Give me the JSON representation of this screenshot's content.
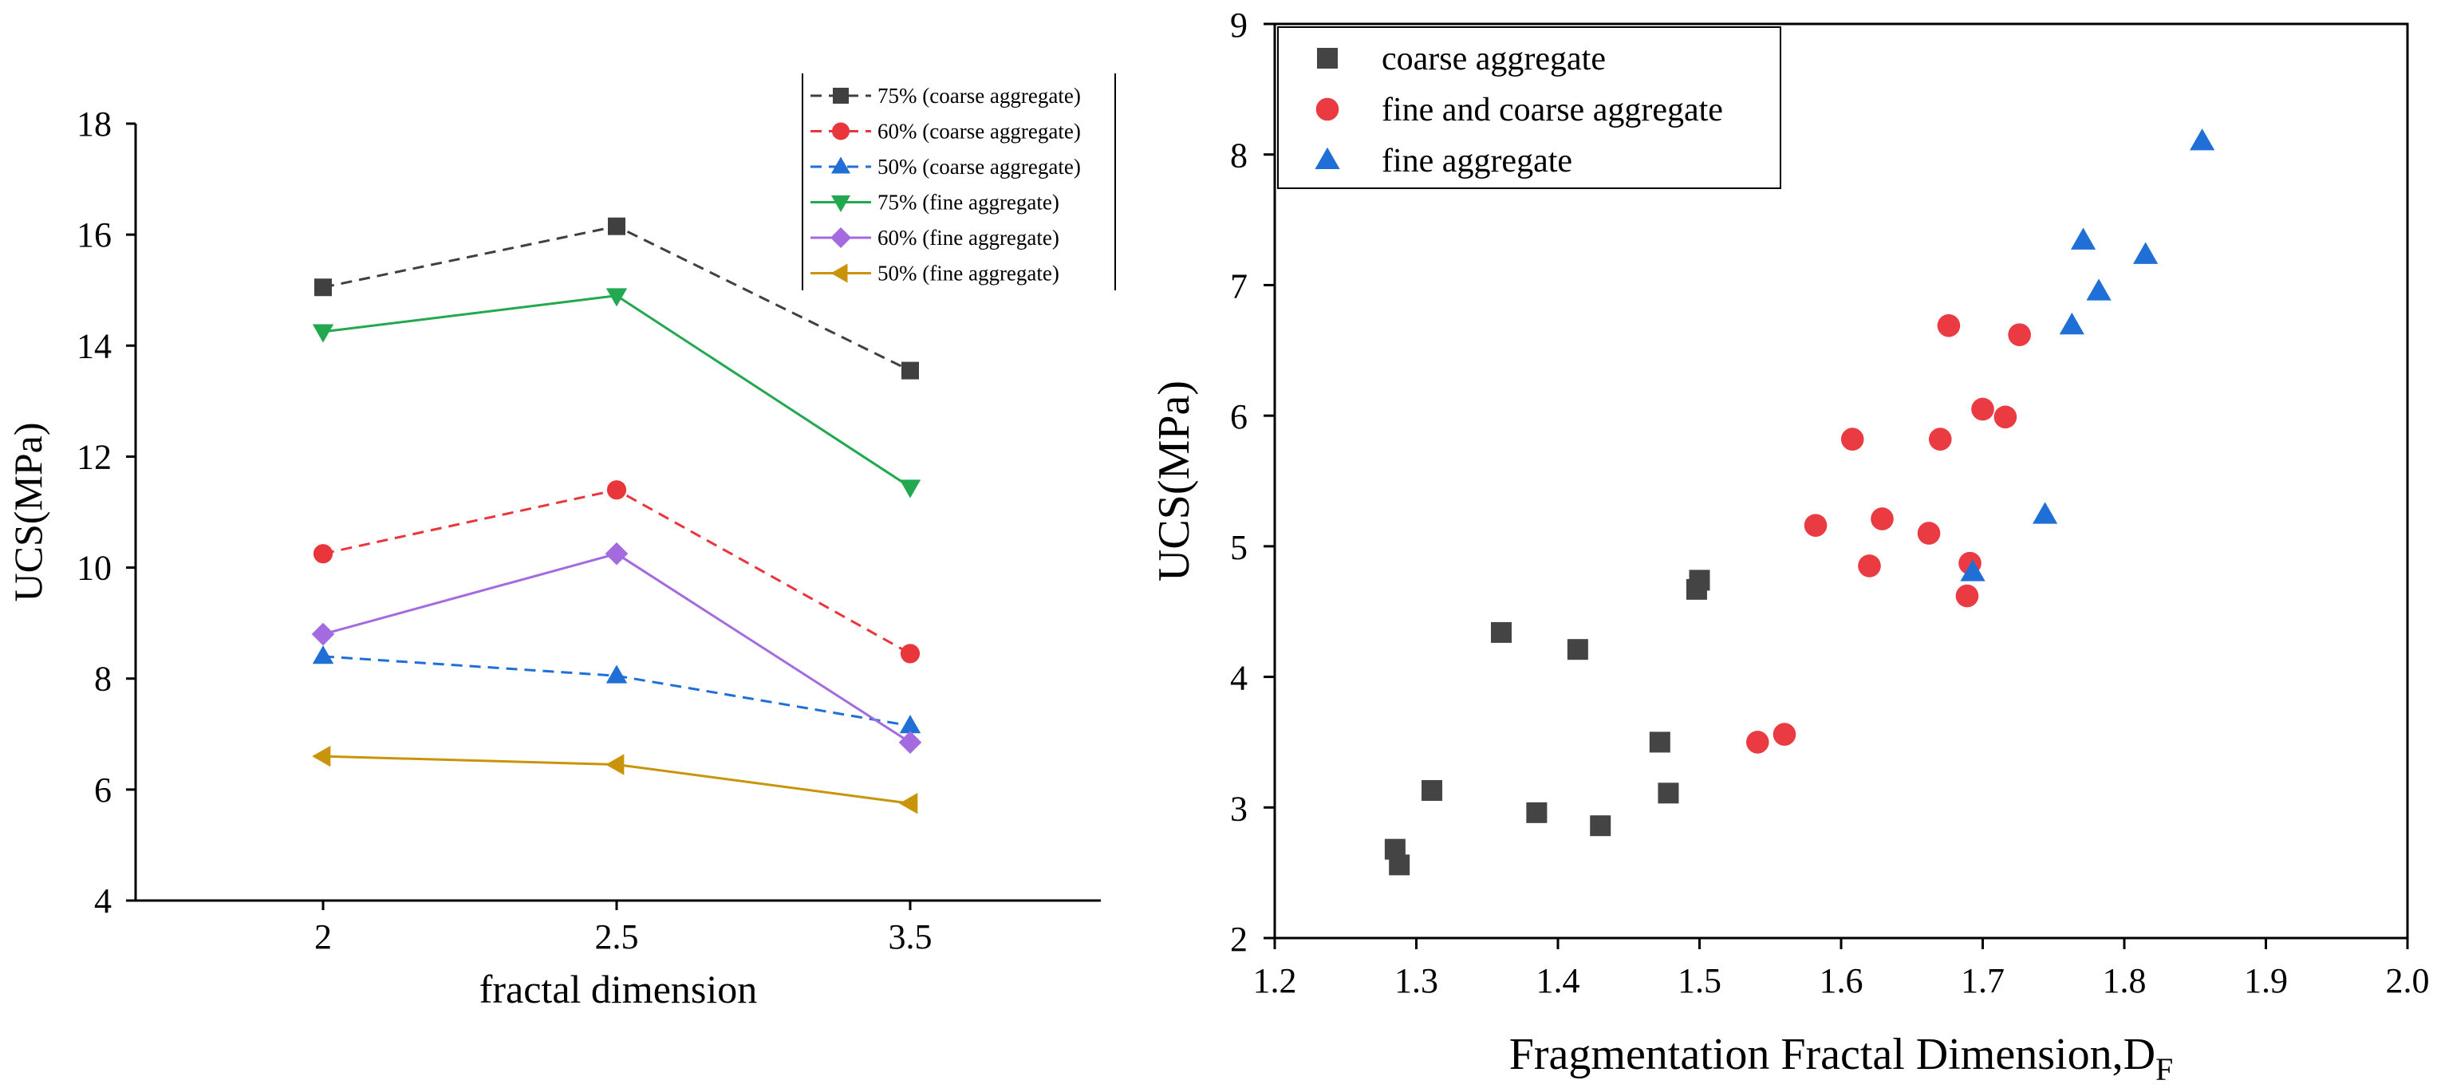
{
  "chart_data": [
    {
      "type": "line",
      "title": "",
      "xlabel": "fractal dimension",
      "ylabel": "UCS(MPa)",
      "categories": [
        "2",
        "2.5",
        "3.5"
      ],
      "ylim": [
        4,
        18
      ],
      "yticks": [
        4,
        6,
        8,
        10,
        12,
        14,
        16,
        18
      ],
      "legend_position": "top-right",
      "series": [
        {
          "name": "75% (coarse aggregate)",
          "values": [
            15.05,
            16.15,
            13.55
          ],
          "color": "#404040",
          "dash": true,
          "marker": "square"
        },
        {
          "name": "60% (coarse aggregate)",
          "values": [
            10.25,
            11.4,
            8.45
          ],
          "color": "#e8363b",
          "dash": true,
          "marker": "circle"
        },
        {
          "name": "50% (coarse aggregate)",
          "values": [
            8.4,
            8.05,
            7.15
          ],
          "color": "#1f6fd6",
          "dash": true,
          "marker": "triangle-up"
        },
        {
          "name": "75% (fine aggregate)",
          "values": [
            14.25,
            14.9,
            11.45
          ],
          "color": "#22a84e",
          "dash": false,
          "marker": "triangle-down"
        },
        {
          "name": "60% (fine aggregate)",
          "values": [
            8.8,
            10.25,
            6.85
          ],
          "color": "#a46be0",
          "dash": false,
          "marker": "diamond"
        },
        {
          "name": "50% (fine aggregate)",
          "values": [
            6.6,
            6.45,
            5.75
          ],
          "color": "#c9940a",
          "dash": false,
          "marker": "triangle-left"
        }
      ]
    },
    {
      "type": "scatter",
      "title": "",
      "xlabel": "Fragmentation Fractal Dimension,D",
      "xlabel_subscript": "F",
      "ylabel": "UCS(MPa)",
      "xlim": [
        1.2,
        2.0
      ],
      "ylim": [
        2,
        9
      ],
      "xticks": [
        "1.2",
        "1.3",
        "1.4",
        "1.5",
        "1.6",
        "1.7",
        "1.8",
        "1.9",
        "2.0"
      ],
      "yticks": [
        "2",
        "3",
        "4",
        "5",
        "6",
        "7",
        "8",
        "9"
      ],
      "legend_position": "top-left",
      "series": [
        {
          "name": "coarse aggregate",
          "color": "#444444",
          "marker": "square",
          "points": [
            [
              1.285,
              2.68
            ],
            [
              1.288,
              2.56
            ],
            [
              1.311,
              3.13
            ],
            [
              1.36,
              4.34
            ],
            [
              1.385,
              2.96
            ],
            [
              1.414,
              4.21
            ],
            [
              1.43,
              2.86
            ],
            [
              1.472,
              3.5
            ],
            [
              1.478,
              3.11
            ],
            [
              1.498,
              4.67
            ],
            [
              1.5,
              4.74
            ]
          ]
        },
        {
          "name": "fine and coarse aggregate",
          "color": "#ea3a42",
          "marker": "circle",
          "points": [
            [
              1.541,
              3.5
            ],
            [
              1.56,
              3.56
            ],
            [
              1.582,
              5.16
            ],
            [
              1.608,
              5.82
            ],
            [
              1.62,
              4.85
            ],
            [
              1.629,
              5.21
            ],
            [
              1.662,
              5.1
            ],
            [
              1.67,
              5.82
            ],
            [
              1.676,
              6.69
            ],
            [
              1.689,
              4.62
            ],
            [
              1.691,
              4.87
            ],
            [
              1.7,
              6.05
            ],
            [
              1.716,
              5.99
            ],
            [
              1.726,
              6.62
            ]
          ]
        },
        {
          "name": "fine aggregate",
          "color": "#1f6fd6",
          "marker": "triangle-up",
          "points": [
            [
              1.693,
              4.8
            ],
            [
              1.744,
              5.24
            ],
            [
              1.763,
              6.69
            ],
            [
              1.771,
              7.34
            ],
            [
              1.782,
              6.95
            ],
            [
              1.815,
              7.23
            ],
            [
              1.855,
              8.1
            ]
          ]
        }
      ]
    }
  ]
}
